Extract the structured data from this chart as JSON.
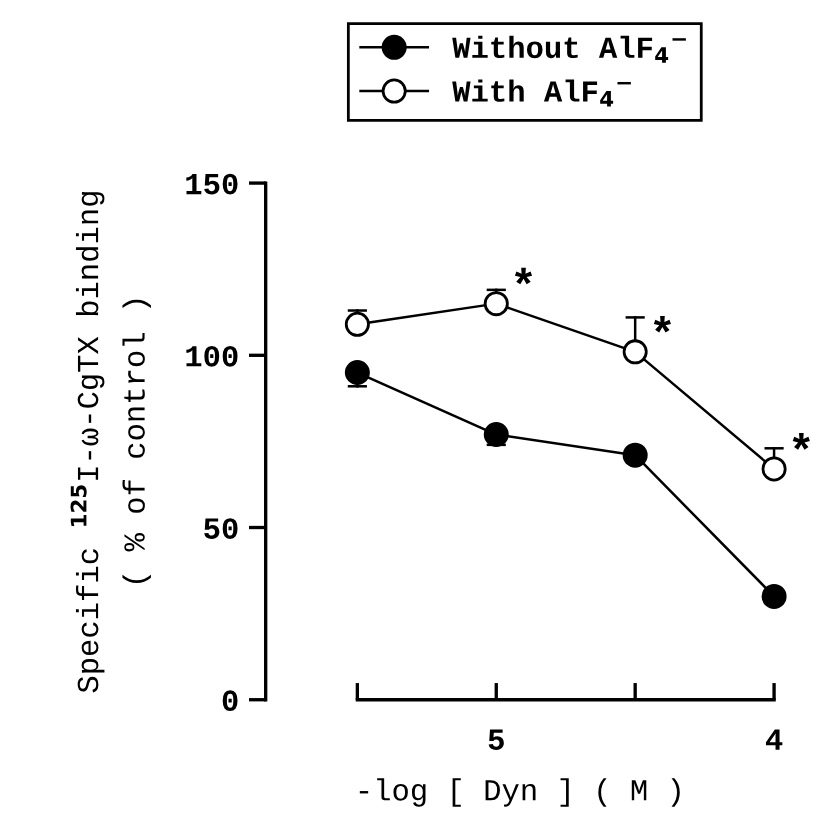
{
  "chart_data": {
    "type": "line",
    "xlabel": "-log [ Dyn ] ( M )",
    "ylabel": "Specific $^{125}$I-ω-CgTX binding\n( % of control )",
    "x": [
      5.5,
      5,
      4.5,
      4
    ],
    "series": [
      {
        "name": "Without AlF$_{4}$$^{−}$",
        "color": "#000000",
        "values": [
          95,
          77,
          71,
          30
        ],
        "errors": [
          [
            91,
            95
          ],
          [
            74,
            77
          ],
          [
            69,
            71
          ],
          [
            28,
            30
          ]
        ]
      },
      {
        "name": "With AlF$_{4}$$^{−}$",
        "color": "#ffffff",
        "values": [
          109,
          115,
          101,
          67
        ],
        "errors": [
          [
            109,
            113
          ],
          [
            115,
            119
          ],
          [
            101,
            111
          ],
          [
            67,
            73
          ]
        ]
      }
    ],
    "xlim": [
      5.83,
      4
    ],
    "ylim": [
      0,
      150
    ],
    "xticks": [
      {
        "value": 5.5,
        "label": null
      },
      5,
      {
        "value": 4.5,
        "label": null
      },
      4
    ],
    "yticks": [
      0,
      50,
      100,
      150
    ],
    "annotations": [
      {
        "text": "*",
        "x": 5,
        "y": 115
      },
      {
        "text": "*",
        "x": 4.5,
        "y": 101
      },
      {
        "text": "*",
        "x": 4,
        "y": 67
      }
    ],
    "marker": "circle",
    "line_style": "solid",
    "grid": false,
    "legend": "top"
  }
}
